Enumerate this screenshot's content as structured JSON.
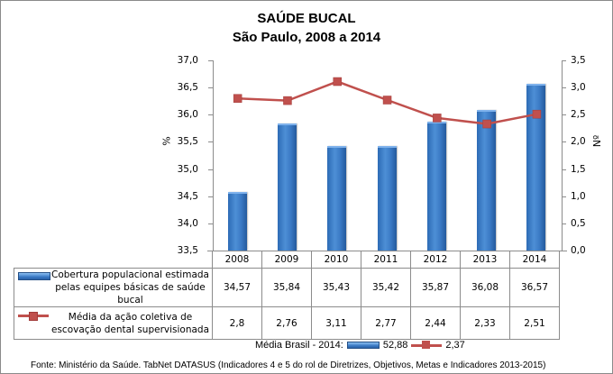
{
  "title": "SAÚDE BUCAL",
  "subtitle": "São Paulo, 2008 a 2014",
  "left_axis": {
    "label": "%",
    "ticks": [
      "37,0",
      "36,5",
      "36,0",
      "35,5",
      "35,0",
      "34,5",
      "34,0",
      "33,5"
    ]
  },
  "right_axis": {
    "label": "Nº",
    "ticks": [
      "3,5",
      "3,0",
      "2,5",
      "2,0",
      "1,5",
      "1,0",
      "0,5",
      "0,0"
    ]
  },
  "table": {
    "years": [
      "2008",
      "2009",
      "2010",
      "2011",
      "2012",
      "2013",
      "2014"
    ],
    "series1_label": "Cobertura populacional estimada pelas equipes básicas de saúde bucal",
    "series1_values": [
      "34,57",
      "35,84",
      "35,43",
      "35,42",
      "35,87",
      "36,08",
      "36,57"
    ],
    "series2_label": "Média da ação coletiva de escovação dental supervisionada",
    "series2_values": [
      "2,8",
      "2,76",
      "3,11",
      "2,77",
      "2,44",
      "2,33",
      "2,51"
    ]
  },
  "brazil_avg": {
    "label": "Média Brasil - 2014:",
    "series1_value": "52,88",
    "series2_value": "2,37"
  },
  "footer": "Fonte: Ministério da Saúde. TabNet DATASUS (Indicadores 4 e 5 do rol de Diretrizes, Objetivos, Metas e Indicadores 2013-2015)",
  "colors": {
    "bar": "#3a79c4",
    "line": "#c0504d"
  },
  "chart_data": {
    "type": "bar",
    "title": "SAÚDE BUCAL",
    "subtitle": "São Paulo, 2008 a 2014",
    "categories": [
      "2008",
      "2009",
      "2010",
      "2011",
      "2012",
      "2013",
      "2014"
    ],
    "series": [
      {
        "name": "Cobertura populacional estimada pelas equipes básicas de saúde bucal",
        "type": "bar",
        "axis": "left",
        "values": [
          34.57,
          35.84,
          35.43,
          35.42,
          35.87,
          36.08,
          36.57
        ]
      },
      {
        "name": "Média da ação coletiva de escovação dental supervisionada",
        "type": "line",
        "axis": "right",
        "values": [
          2.8,
          2.76,
          3.11,
          2.77,
          2.44,
          2.33,
          2.51
        ]
      }
    ],
    "ylabel": "%",
    "ylim": [
      33.5,
      37.0
    ],
    "y2label": "Nº",
    "y2lim": [
      0.0,
      3.5
    ],
    "xlabel": "",
    "grid": false,
    "legend_position": "data table below chart",
    "annotations": [
      "Média Brasil - 2014: 52,88 (cobertura), 2,37 (escovação)"
    ],
    "source": "Fonte: Ministério da Saúde. TabNet DATASUS (Indicadores 4 e 5 do rol de Diretrizes, Objetivos, Metas e Indicadores 2013-2015)"
  }
}
